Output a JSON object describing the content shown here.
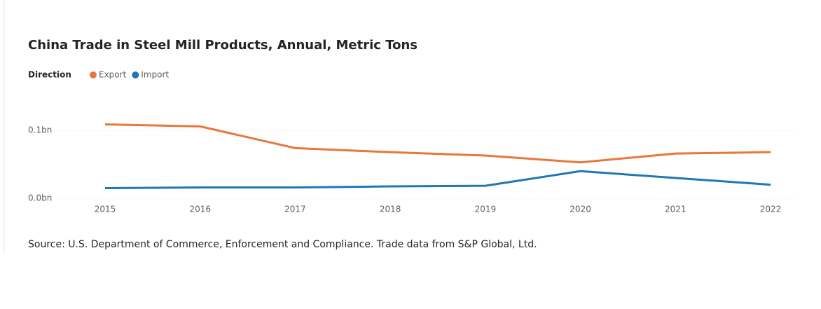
{
  "chart_data": {
    "type": "line",
    "title": "China Trade in Steel Mill Products, Annual, Metric Tons",
    "legend_title": "Direction",
    "source": "Source: U.S. Department of Commerce, Enforcement and Compliance. Trade data from S&P Global, Ltd.",
    "categories": [
      "2015",
      "2016",
      "2017",
      "2018",
      "2019",
      "2020",
      "2021",
      "2022"
    ],
    "series": [
      {
        "name": "Export",
        "color": "#e8773a",
        "values": [
          109000000,
          106000000,
          74000000,
          68000000,
          63000000,
          53000000,
          66000000,
          68000000
        ]
      },
      {
        "name": "Import",
        "color": "#1f77b4",
        "values": [
          15000000,
          16000000,
          16000000,
          17500000,
          18500000,
          40000000,
          30000000,
          20000000
        ]
      }
    ],
    "ylim": [
      0,
      125000000
    ],
    "yticks": [
      {
        "value": 0,
        "label": "0.0bn"
      },
      {
        "value": 100000000,
        "label": "0.1bn"
      }
    ],
    "grid": true
  }
}
